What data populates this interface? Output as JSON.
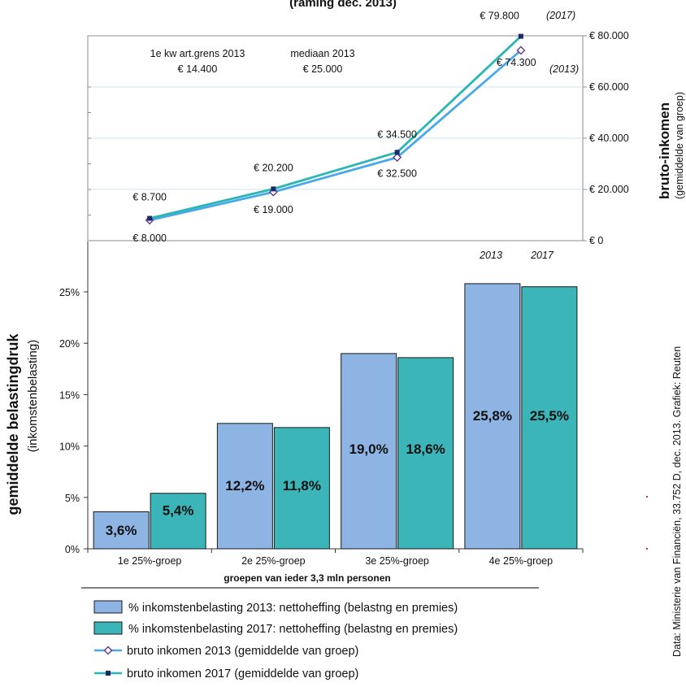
{
  "chart_data": {
    "type": "bar+line",
    "title_fragment": "(raming dec. 2013)",
    "categories": [
      "1e 25%-groep",
      "2e 25%-groep",
      "3e 25%-groep",
      "4e 25%-groep"
    ],
    "xlabel": "groepen van ieder 3,3 mln personen",
    "bar_axis": {
      "label": "gemiddelde belastingdruk",
      "sublabel": "(inkomstenbelasting)",
      "ticks": [
        "0%",
        "5%",
        "10%",
        "15%",
        "20%",
        "25%"
      ],
      "ylim": [
        0,
        25
      ]
    },
    "line_axis": {
      "label": "bruto-inkomen",
      "sublabel": "(gemiddelde van groep)",
      "ticks": [
        "€ 0",
        "€ 20.000",
        "€ 40.000",
        "€ 60.000",
        "€ 80.000"
      ],
      "ylim": [
        0,
        80000
      ]
    },
    "bar_series": [
      {
        "name": "% inkomstenbelasting 2013: nettoheffing (belastng en premies)",
        "color": "#8db4e2",
        "values": [
          3.6,
          12.2,
          19.0,
          25.8
        ],
        "labels": [
          "3,6%",
          "12,2%",
          "19,0%",
          "25,8%"
        ]
      },
      {
        "name": "% inkomstenbelasting 2017: nettoheffing (belastng en premies)",
        "color": "#3bb5b8",
        "values": [
          5.4,
          11.8,
          18.6,
          25.5
        ],
        "labels": [
          "5,4%",
          "11,8%",
          "18,6%",
          "25,5%"
        ]
      }
    ],
    "line_series": [
      {
        "name": "bruto inkomen 2013 (gemiddelde van groep)",
        "color": "#4aa8e8",
        "values": [
          8000,
          19000,
          32500,
          74300
        ],
        "labels": [
          "€ 8.000",
          "€ 19.000",
          "€ 32.500",
          "€ 74.300"
        ]
      },
      {
        "name": "bruto inkomen 2017 (gemiddelde van groep)",
        "color": "#2ab7b4",
        "values": [
          8700,
          20200,
          34500,
          79800
        ],
        "labels": [
          "€ 8.700",
          "€ 20.200",
          "€ 34.500",
          "€ 79.800"
        ]
      }
    ],
    "annotations": {
      "year_2013": "2013",
      "year_2017": "2017",
      "tag_2017": "(2017)",
      "tag_2013": "(2013)",
      "kwartgrens_label": "1e kw art.grens 2013",
      "kwartgrens_value": "€ 14.400",
      "mediaan_label": "mediaan 2013",
      "mediaan_value": "€ 25.000"
    },
    "source": "Data: Ministerie van Financiën, 33.752 D, dec. 2013. Grafiek: Reuten"
  }
}
